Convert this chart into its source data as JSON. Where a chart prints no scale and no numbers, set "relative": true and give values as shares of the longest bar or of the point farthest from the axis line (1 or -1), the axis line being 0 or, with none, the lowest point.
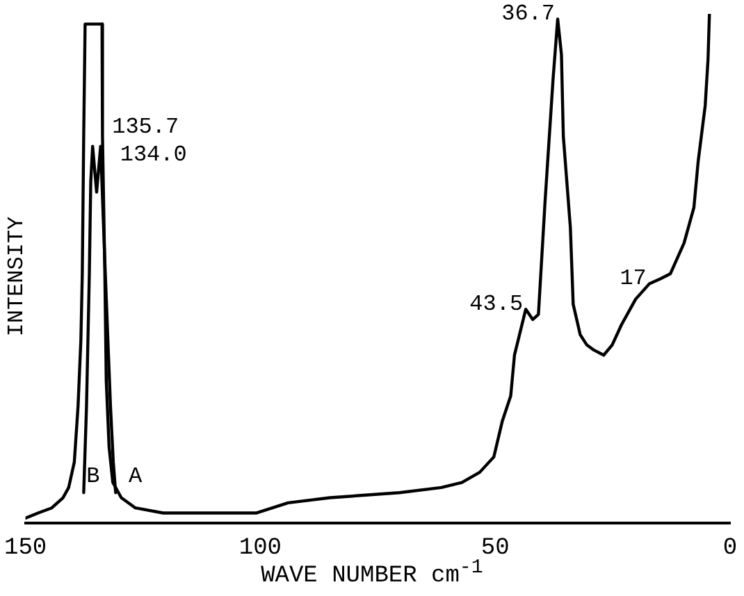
{
  "chart_data": {
    "type": "line",
    "relative": true,
    "xlabel": "WAVE NUMBER cm$^{-1}$",
    "ylabel": "INTENSITY",
    "xlim": [
      150,
      0
    ],
    "xticks": [
      150,
      100,
      50,
      0
    ],
    "grid": false,
    "legend": false,
    "marker": "none",
    "line_style": "solid",
    "series": [
      {
        "color": "#000000",
        "x": [
          150,
          147.3,
          144.4,
          142.0,
          140.8,
          139.6,
          138.8,
          138.2,
          137.9,
          137.6,
          137.3,
          133.7,
          133.6,
          133.1,
          132.8,
          132.2,
          131.4,
          129.6,
          126.6,
          120.7,
          106.8,
          100.9,
          94.1,
          85.2,
          70.4,
          61.5,
          57.1,
          53.3,
          50.3,
          48.5,
          46.7,
          45.9,
          43.5,
          42.0,
          40.8,
          39.4,
          37.7,
          36.7,
          35.9,
          35.5,
          34.0,
          33.4,
          31.9,
          30.5,
          29.0,
          26.9,
          25.1,
          23.1,
          20.1,
          17.2,
          14.8,
          12.7,
          9.8,
          7.7,
          6.8,
          5.3,
          4.7,
          4.4
        ],
        "values": [
          0.01,
          0.02,
          0.03,
          0.05,
          0.07,
          0.12,
          0.23,
          0.36,
          0.49,
          0.76,
          0.98,
          0.98,
          0.76,
          0.49,
          0.28,
          0.15,
          0.08,
          0.05,
          0.03,
          0.02,
          0.02,
          0.02,
          0.04,
          0.05,
          0.06,
          0.07,
          0.08,
          0.1,
          0.13,
          0.2,
          0.25,
          0.33,
          0.42,
          0.4,
          0.41,
          0.63,
          0.87,
          0.99,
          0.92,
          0.76,
          0.58,
          0.43,
          0.37,
          0.35,
          0.34,
          0.33,
          0.35,
          0.39,
          0.44,
          0.47,
          0.48,
          0.49,
          0.55,
          0.62,
          0.71,
          0.82,
          0.91,
          1.0
        ]
      },
      {
        "color": "#000000",
        "x": [
          137.6,
          137.0,
          136.4,
          136.1,
          135.7,
          134.85,
          134.0,
          133.0,
          131.9,
          131.3,
          130.8
        ],
        "values": [
          0.06,
          0.23,
          0.49,
          0.67,
          0.74,
          0.65,
          0.74,
          0.49,
          0.23,
          0.12,
          0.06
        ]
      }
    ],
    "annotations": [
      {
        "text": "135.7",
        "x": 135.7,
        "y": 0.74
      },
      {
        "text": "134.0",
        "x": 134.0,
        "y": 0.74
      },
      {
        "text": "B",
        "x": 135.6,
        "y": 0.06
      },
      {
        "text": "A",
        "x": 126.6,
        "y": 0.03
      },
      {
        "text": "43.5",
        "x": 43.5,
        "y": 0.42
      },
      {
        "text": "36.7",
        "x": 36.7,
        "y": 0.99
      },
      {
        "text": "17",
        "x": 17.2,
        "y": 0.47
      }
    ]
  }
}
